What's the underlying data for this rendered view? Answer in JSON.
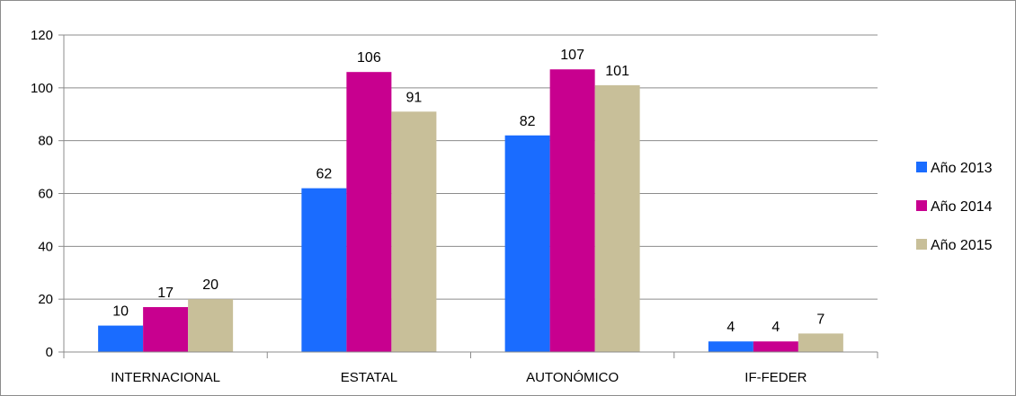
{
  "chart_data": {
    "type": "bar",
    "title": "",
    "xlabel": "",
    "ylabel": "",
    "categories": [
      "INTERNACIONAL",
      "ESTATAL",
      "AUTONÓMICO",
      "IF-FEDER"
    ],
    "series": [
      {
        "name": "Año 2013",
        "color": "#1a6cff",
        "values": [
          10,
          62,
          82,
          4
        ]
      },
      {
        "name": "Año 2014",
        "color": "#c8008f",
        "values": [
          17,
          106,
          107,
          4
        ]
      },
      {
        "name": "Año 2015",
        "color": "#c8bf99",
        "values": [
          20,
          91,
          101,
          7
        ]
      }
    ],
    "ylim": [
      0,
      120
    ],
    "yticks": [
      0,
      20,
      40,
      60,
      80,
      100,
      120
    ],
    "grid": true,
    "legend_position": "right",
    "data_labels": true
  }
}
